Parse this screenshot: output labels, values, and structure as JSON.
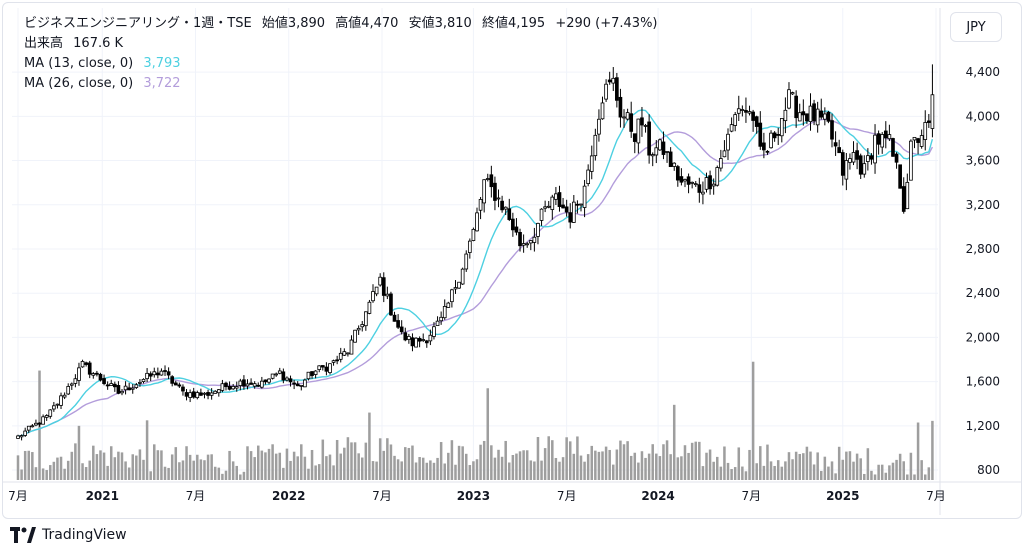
{
  "header": {
    "symbol": "ビジネスエンジニアリング・1週・TSE",
    "open_label": "始値",
    "open": "3,890",
    "high_label": "高値",
    "high": "4,470",
    "low_label": "安値",
    "low": "3,810",
    "close_label": "終値",
    "close": "4,195",
    "change": "+290 (+7.43%)",
    "volume_label": "出来高",
    "volume": "167.6 K",
    "ma13_label": "MA (13, close, 0)",
    "ma13_value": "3,793",
    "ma26_label": "MA (26, close, 0)",
    "ma26_value": "3,722"
  },
  "currency_button": "JPY",
  "brand": "TradingView",
  "colors": {
    "up": "#ffffff",
    "down": "#000000",
    "ma13": "#4dd0e1",
    "ma26": "#b39ddb",
    "volume": "#9e9e9e",
    "grid": "#f0f3fa"
  },
  "chart_data": {
    "type": "candlestick",
    "title": "ビジネスエンジニアリング・1週・TSE",
    "y_axis": {
      "ticks": [
        800,
        1200,
        1600,
        2000,
        2400,
        2800,
        3200,
        3600,
        4000,
        4400
      ],
      "tick_labels": [
        "800",
        "1,200",
        "1,600",
        "2,000",
        "2,400",
        "2,800",
        "3,200",
        "3,600",
        "4,000",
        "4,400"
      ],
      "ylim": [
        710,
        4600
      ]
    },
    "x_axis": {
      "tick_labels": [
        "7月",
        "2021",
        "7月",
        "2022",
        "7月",
        "2023",
        "7月",
        "2024",
        "7月",
        "2025",
        "7月"
      ],
      "tick_weeks": [
        0,
        23.5,
        49.5,
        75.5,
        101.5,
        127,
        153,
        178.5,
        204.5,
        230,
        256
      ]
    },
    "price_anchors": [
      [
        0,
        1100
      ],
      [
        8,
        1280
      ],
      [
        12,
        1450
      ],
      [
        18,
        1750
      ],
      [
        22,
        1650
      ],
      [
        28,
        1500
      ],
      [
        35,
        1620
      ],
      [
        40,
        1700
      ],
      [
        46,
        1500
      ],
      [
        52,
        1480
      ],
      [
        58,
        1560
      ],
      [
        63,
        1600
      ],
      [
        68,
        1580
      ],
      [
        73,
        1680
      ],
      [
        78,
        1550
      ],
      [
        82,
        1680
      ],
      [
        87,
        1750
      ],
      [
        92,
        1880
      ],
      [
        96,
        2150
      ],
      [
        101,
        2520
      ],
      [
        104,
        2250
      ],
      [
        107,
        2020
      ],
      [
        110,
        1950
      ],
      [
        114,
        2000
      ],
      [
        118,
        2150
      ],
      [
        120,
        2300
      ],
      [
        124,
        2650
      ],
      [
        127,
        2950
      ],
      [
        130,
        3400
      ],
      [
        133,
        3300
      ],
      [
        136,
        3150
      ],
      [
        138,
        3000
      ],
      [
        140,
        2850
      ],
      [
        143,
        2900
      ],
      [
        147,
        3150
      ],
      [
        150,
        3250
      ],
      [
        154,
        3100
      ],
      [
        158,
        3350
      ],
      [
        161,
        3900
      ],
      [
        163,
        4200
      ],
      [
        166,
        4300
      ],
      [
        168,
        4050
      ],
      [
        172,
        3850
      ],
      [
        174,
        3950
      ],
      [
        176,
        3700
      ],
      [
        180,
        3700
      ],
      [
        185,
        3400
      ],
      [
        190,
        3350
      ],
      [
        194,
        3450
      ],
      [
        198,
        3800
      ],
      [
        201,
        4100
      ],
      [
        205,
        4000
      ],
      [
        207,
        3650
      ],
      [
        209,
        3700
      ],
      [
        213,
        4000
      ],
      [
        215,
        4150
      ],
      [
        218,
        4050
      ],
      [
        222,
        4000
      ],
      [
        226,
        3900
      ],
      [
        230,
        3500
      ],
      [
        233,
        3650
      ],
      [
        236,
        3500
      ],
      [
        239,
        3800
      ],
      [
        243,
        3750
      ],
      [
        246,
        3400
      ],
      [
        247,
        3200
      ],
      [
        249,
        3700
      ],
      [
        252,
        3860
      ],
      [
        254,
        3890
      ],
      [
        255,
        4195
      ]
    ],
    "volume_anchors": [
      [
        0,
        880
      ],
      [
        20,
        950
      ],
      [
        40,
        900
      ],
      [
        60,
        880
      ],
      [
        80,
        930
      ],
      [
        100,
        1000
      ],
      [
        120,
        960
      ],
      [
        140,
        1000
      ],
      [
        160,
        980
      ],
      [
        180,
        950
      ],
      [
        200,
        920
      ],
      [
        220,
        900
      ],
      [
        240,
        880
      ],
      [
        255,
        860
      ]
    ],
    "volume_spikes": [
      [
        6,
        1700
      ],
      [
        17,
        1200
      ],
      [
        36,
        1250
      ],
      [
        98,
        1320
      ],
      [
        131,
        1540
      ],
      [
        183,
        1390
      ],
      [
        205,
        1780
      ],
      [
        251,
        1230
      ],
      [
        255,
        1245
      ]
    ],
    "last_candle": {
      "open": 3890,
      "high": 4470,
      "low": 3810,
      "close": 4195,
      "volume_k": 167.6
    },
    "series": [
      {
        "name": "MA (13, close, 0)",
        "last": 3793
      },
      {
        "name": "MA (26, close, 0)",
        "last": 3722
      }
    ]
  }
}
